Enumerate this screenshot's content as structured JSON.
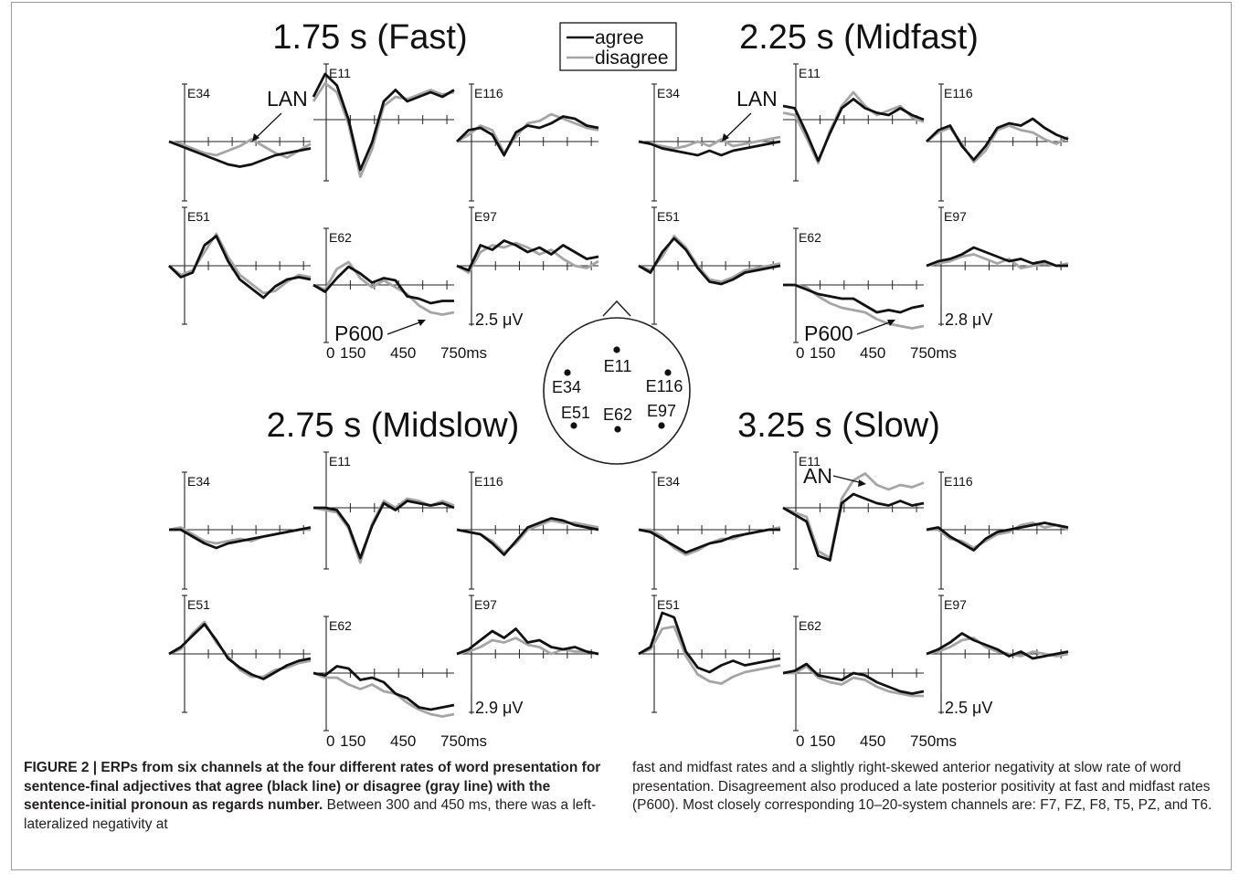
{
  "legend": {
    "agree": "agree",
    "disagree": "disagree"
  },
  "colors": {
    "agree": "#111111",
    "disagree": "#a5a5a5",
    "axis": "#222222",
    "frame": "#9a9a9a"
  },
  "panels": [
    {
      "title": "1.75 s (Fast)",
      "scale_label": "2.5 μV",
      "time_ticks": [
        "0",
        "150",
        "450",
        "750ms"
      ],
      "annotations": [
        "LAN",
        "P600"
      ],
      "channels": {
        "E34": {
          "label": "E34",
          "agree": [
            0,
            -0.2,
            -0.4,
            -0.6,
            -0.8,
            -1.0,
            -1.1,
            -1.0,
            -0.8,
            -0.6,
            -0.5,
            -0.4,
            -0.3
          ],
          "disagree": [
            0,
            -0.1,
            -0.3,
            -0.5,
            -0.6,
            -0.4,
            -0.2,
            0.1,
            -0.2,
            -0.5,
            -0.7,
            -0.4,
            -0.1
          ]
        },
        "E11": {
          "label": "E11",
          "agree": [
            1.0,
            2.0,
            1.5,
            0.0,
            -2.2,
            -1.0,
            0.8,
            1.3,
            0.8,
            1.0,
            1.2,
            1.0,
            1.3
          ],
          "disagree": [
            0.8,
            1.6,
            1.2,
            -0.2,
            -2.5,
            -1.3,
            0.6,
            1.0,
            0.9,
            1.1,
            1.3,
            1.1,
            1.2
          ]
        },
        "E116": {
          "label": "E116",
          "agree": [
            0,
            0.5,
            0.6,
            0.3,
            -0.6,
            0.4,
            0.7,
            0.6,
            0.8,
            1.1,
            1.0,
            0.7,
            0.6
          ],
          "disagree": [
            0,
            0.3,
            0.7,
            0.5,
            -0.5,
            0.2,
            0.8,
            0.9,
            1.2,
            1.0,
            0.8,
            0.6,
            0.5
          ]
        },
        "E51": {
          "label": "E51",
          "agree": [
            0,
            -0.5,
            -0.3,
            0.9,
            1.3,
            0.2,
            -0.6,
            -1.0,
            -1.4,
            -0.9,
            -0.6,
            -0.5,
            -0.6
          ],
          "disagree": [
            0,
            -0.4,
            -0.2,
            0.6,
            1.4,
            0.4,
            -0.4,
            -0.8,
            -1.2,
            -1.1,
            -0.7,
            -0.4,
            -0.5
          ]
        },
        "E62": {
          "label": "E62",
          "agree": [
            0,
            -0.3,
            0.3,
            0.8,
            0.5,
            0.1,
            0.3,
            0.2,
            -0.5,
            -0.6,
            -0.8,
            -0.7,
            -0.7
          ],
          "disagree": [
            0,
            -0.2,
            0.7,
            1.0,
            0.3,
            -0.1,
            0.2,
            -0.1,
            -0.4,
            -0.9,
            -1.2,
            -1.3,
            -1.2
          ]
        },
        "E97": {
          "label": "E97",
          "agree": [
            0,
            -0.2,
            0.9,
            0.7,
            1.1,
            0.9,
            0.6,
            0.8,
            0.5,
            0.9,
            0.6,
            0.3,
            0.4
          ],
          "disagree": [
            0,
            -0.3,
            0.6,
            0.9,
            0.8,
            1.0,
            0.8,
            0.5,
            0.7,
            0.3,
            0.0,
            -0.1,
            0.2
          ]
        }
      }
    },
    {
      "title": "2.25 s (Midfast)",
      "scale_label": "2.8 μV",
      "time_ticks": [
        "0",
        "150",
        "450",
        "750ms"
      ],
      "annotations": [
        "LAN",
        "P600"
      ],
      "channels": {
        "E34": {
          "label": "E34",
          "agree": [
            0,
            -0.1,
            -0.3,
            -0.4,
            -0.5,
            -0.6,
            -0.4,
            -0.6,
            -0.4,
            -0.3,
            -0.2,
            -0.1,
            0.0
          ],
          "disagree": [
            0,
            -0.1,
            -0.2,
            -0.3,
            -0.2,
            0.0,
            -0.2,
            0.1,
            -0.2,
            -0.1,
            0.0,
            0.1,
            0.2
          ]
        },
        "E11": {
          "label": "E11",
          "agree": [
            0.6,
            0.5,
            -0.6,
            -1.8,
            -0.6,
            0.5,
            0.9,
            0.5,
            0.3,
            0.2,
            0.5,
            0.2,
            0.0
          ],
          "disagree": [
            0.3,
            0.2,
            -0.8,
            -1.9,
            -0.5,
            0.6,
            1.2,
            0.6,
            0.2,
            0.4,
            0.6,
            0.1,
            -0.1
          ]
        },
        "E116": {
          "label": "E116",
          "agree": [
            0,
            0.5,
            0.7,
            -0.2,
            -0.8,
            -0.2,
            0.6,
            0.8,
            0.7,
            1.0,
            0.6,
            0.3,
            0.1
          ],
          "disagree": [
            0,
            0.4,
            0.6,
            -0.1,
            -0.9,
            -0.4,
            0.5,
            0.7,
            0.5,
            0.4,
            0.1,
            -0.1,
            0.2
          ]
        },
        "E51": {
          "label": "E51",
          "agree": [
            0,
            -0.3,
            0.6,
            1.2,
            0.7,
            -0.1,
            -0.7,
            -0.8,
            -0.6,
            -0.3,
            -0.2,
            -0.1,
            0.0
          ],
          "disagree": [
            0,
            -0.2,
            0.4,
            1.3,
            0.8,
            0.0,
            -0.6,
            -0.7,
            -0.5,
            -0.2,
            -0.1,
            0.0,
            0.1
          ]
        },
        "E62": {
          "label": "E62",
          "agree": [
            0,
            0.0,
            -0.2,
            -0.4,
            -0.5,
            -0.6,
            -0.6,
            -0.9,
            -1.2,
            -1.1,
            -1.2,
            -1.0,
            -0.9
          ],
          "disagree": [
            0,
            0.0,
            -0.1,
            -0.5,
            -0.8,
            -1.0,
            -1.1,
            -1.2,
            -1.5,
            -1.7,
            -1.8,
            -1.9,
            -1.8
          ]
        },
        "E97": {
          "label": "E97",
          "agree": [
            0,
            0.2,
            0.3,
            0.5,
            0.8,
            0.6,
            0.4,
            0.2,
            0.3,
            0.1,
            0.2,
            0.0,
            0.0
          ],
          "disagree": [
            0,
            0.1,
            0.2,
            0.4,
            0.5,
            0.3,
            0.1,
            0.3,
            -0.1,
            0.0,
            0.1,
            0.0,
            0.1
          ]
        }
      }
    },
    {
      "title": "2.75 s (Midslow)",
      "scale_label": "2.9 μV",
      "time_ticks": [
        "0",
        "150",
        "450",
        "750ms"
      ],
      "annotations": [],
      "channels": {
        "E34": {
          "label": "E34",
          "agree": [
            0,
            0.0,
            -0.3,
            -0.6,
            -0.8,
            -0.6,
            -0.5,
            -0.4,
            -0.3,
            -0.2,
            -0.1,
            0.0,
            0.1
          ],
          "disagree": [
            0,
            0.1,
            -0.2,
            -0.5,
            -0.6,
            -0.5,
            -0.4,
            -0.5,
            -0.3,
            -0.2,
            -0.1,
            0.0,
            0.0
          ]
        },
        "E11": {
          "label": "E11",
          "agree": [
            0,
            0.0,
            -0.1,
            -0.8,
            -2.2,
            -0.8,
            0.2,
            -0.1,
            0.3,
            0.2,
            0.1,
            0.2,
            0.0
          ],
          "disagree": [
            0,
            -0.1,
            -0.2,
            -0.9,
            -2.4,
            -0.7,
            0.3,
            0.0,
            0.4,
            0.3,
            0.1,
            0.3,
            0.1
          ]
        },
        "E116": {
          "label": "E116",
          "agree": [
            0,
            -0.1,
            -0.2,
            -0.6,
            -1.1,
            -0.5,
            0.1,
            0.3,
            0.5,
            0.4,
            0.2,
            0.1,
            0.0
          ],
          "disagree": [
            0,
            -0.1,
            -0.2,
            -0.5,
            -1.0,
            -0.6,
            0.0,
            0.2,
            0.4,
            0.3,
            0.3,
            0.2,
            0.1
          ]
        },
        "E51": {
          "label": "E51",
          "agree": [
            0,
            0.3,
            0.8,
            1.3,
            0.6,
            -0.2,
            -0.6,
            -0.9,
            -1.1,
            -0.8,
            -0.5,
            -0.3,
            -0.2
          ],
          "disagree": [
            0,
            0.2,
            0.9,
            1.4,
            0.5,
            -0.1,
            -0.7,
            -1.0,
            -1.0,
            -0.7,
            -0.6,
            -0.4,
            -0.3
          ]
        },
        "E62": {
          "label": "E62",
          "agree": [
            0,
            -0.1,
            0.3,
            0.2,
            -0.3,
            -0.2,
            -0.4,
            -0.9,
            -1.1,
            -1.5,
            -1.6,
            -1.5,
            -1.4
          ],
          "disagree": [
            0,
            -0.2,
            -0.2,
            -0.5,
            -0.7,
            -0.5,
            -0.8,
            -0.9,
            -1.3,
            -1.6,
            -1.8,
            -1.9,
            -1.8
          ]
        },
        "E97": {
          "label": "E97",
          "agree": [
            0,
            0.2,
            0.6,
            1.0,
            0.7,
            1.1,
            0.5,
            0.6,
            0.3,
            0.2,
            0.3,
            0.1,
            0.0
          ],
          "disagree": [
            0,
            0.1,
            0.3,
            0.6,
            0.5,
            0.7,
            0.4,
            0.3,
            0.0,
            0.2,
            0.1,
            0.1,
            0.0
          ]
        }
      }
    },
    {
      "title": "3.25 s (Slow)",
      "scale_label": "2.5 μV",
      "time_ticks": [
        "0",
        "150",
        "450",
        "750ms"
      ],
      "annotations": [
        "AN"
      ],
      "channels": {
        "E34": {
          "label": "E34",
          "agree": [
            0,
            -0.1,
            -0.4,
            -0.7,
            -1.0,
            -0.8,
            -0.6,
            -0.5,
            -0.3,
            -0.2,
            -0.1,
            0.0,
            0.0
          ],
          "disagree": [
            0,
            0.0,
            -0.3,
            -0.8,
            -1.1,
            -0.9,
            -0.6,
            -0.4,
            -0.4,
            -0.2,
            -0.1,
            0.0,
            0.1
          ]
        },
        "E11": {
          "label": "E11",
          "agree": [
            0,
            -0.3,
            -0.6,
            -2.1,
            -2.3,
            0.2,
            0.6,
            0.4,
            0.2,
            0.1,
            0.3,
            0.1,
            0.2
          ],
          "disagree": [
            0,
            -0.2,
            -0.4,
            -1.9,
            -2.2,
            0.4,
            1.2,
            1.5,
            1.0,
            0.8,
            1.0,
            0.9,
            1.1
          ]
        },
        "E116": {
          "label": "E116",
          "agree": [
            0,
            0.1,
            -0.3,
            -0.6,
            -0.9,
            -0.4,
            -0.1,
            0.0,
            0.1,
            0.2,
            0.3,
            0.2,
            0.1
          ],
          "disagree": [
            0,
            0.0,
            -0.4,
            -0.5,
            -0.8,
            -0.5,
            -0.2,
            -0.1,
            0.2,
            0.3,
            0.1,
            0.2,
            0.0
          ]
        },
        "E51": {
          "label": "E51",
          "agree": [
            0,
            0.3,
            1.8,
            1.6,
            0.1,
            -0.6,
            -0.8,
            -0.5,
            -0.3,
            -0.5,
            -0.4,
            -0.3,
            -0.2
          ],
          "disagree": [
            0,
            0.2,
            1.1,
            1.2,
            -0.1,
            -0.9,
            -1.2,
            -1.3,
            -1.0,
            -0.8,
            -0.7,
            -0.6,
            -0.5
          ]
        },
        "E62": {
          "label": "E62",
          "agree": [
            0,
            0.1,
            0.4,
            -0.1,
            -0.2,
            -0.3,
            0.0,
            -0.1,
            -0.4,
            -0.6,
            -0.8,
            -0.9,
            -0.8
          ],
          "disagree": [
            0,
            0.0,
            0.3,
            -0.2,
            -0.4,
            -0.5,
            -0.2,
            -0.3,
            -0.6,
            -0.8,
            -0.9,
            -1.0,
            -1.0
          ]
        },
        "E97": {
          "label": "E97",
          "agree": [
            0,
            0.2,
            0.5,
            0.9,
            0.6,
            0.4,
            0.2,
            -0.1,
            0.1,
            -0.2,
            -0.1,
            0.0,
            0.1
          ],
          "disagree": [
            0,
            0.1,
            0.3,
            0.6,
            0.7,
            0.3,
            0.1,
            0.0,
            -0.1,
            0.1,
            0.0,
            -0.1,
            0.0
          ]
        }
      }
    }
  ],
  "head_map": {
    "electrodes": [
      "E11",
      "E34",
      "E116",
      "E51",
      "E62",
      "E97"
    ]
  },
  "caption": {
    "bold": "FIGURE 2 | ERPs from six channels at the four different rates of word presentation for sentence-final adjectives that agree (black line) or disagree (gray line) with the sentence-initial pronoun as regards number.",
    "left_rest": " Between 300 and 450 ms, there was a left-lateralized negativity at",
    "right": "fast and midfast rates and a slightly right-skewed anterior negativity at slow rate of word presentation. Disagreement also produced a late posterior positivity at fast and midfast rates (P600). Most closely corresponding 10–20-system channels are: F7, FZ, F8, T5, PZ, and T6."
  }
}
